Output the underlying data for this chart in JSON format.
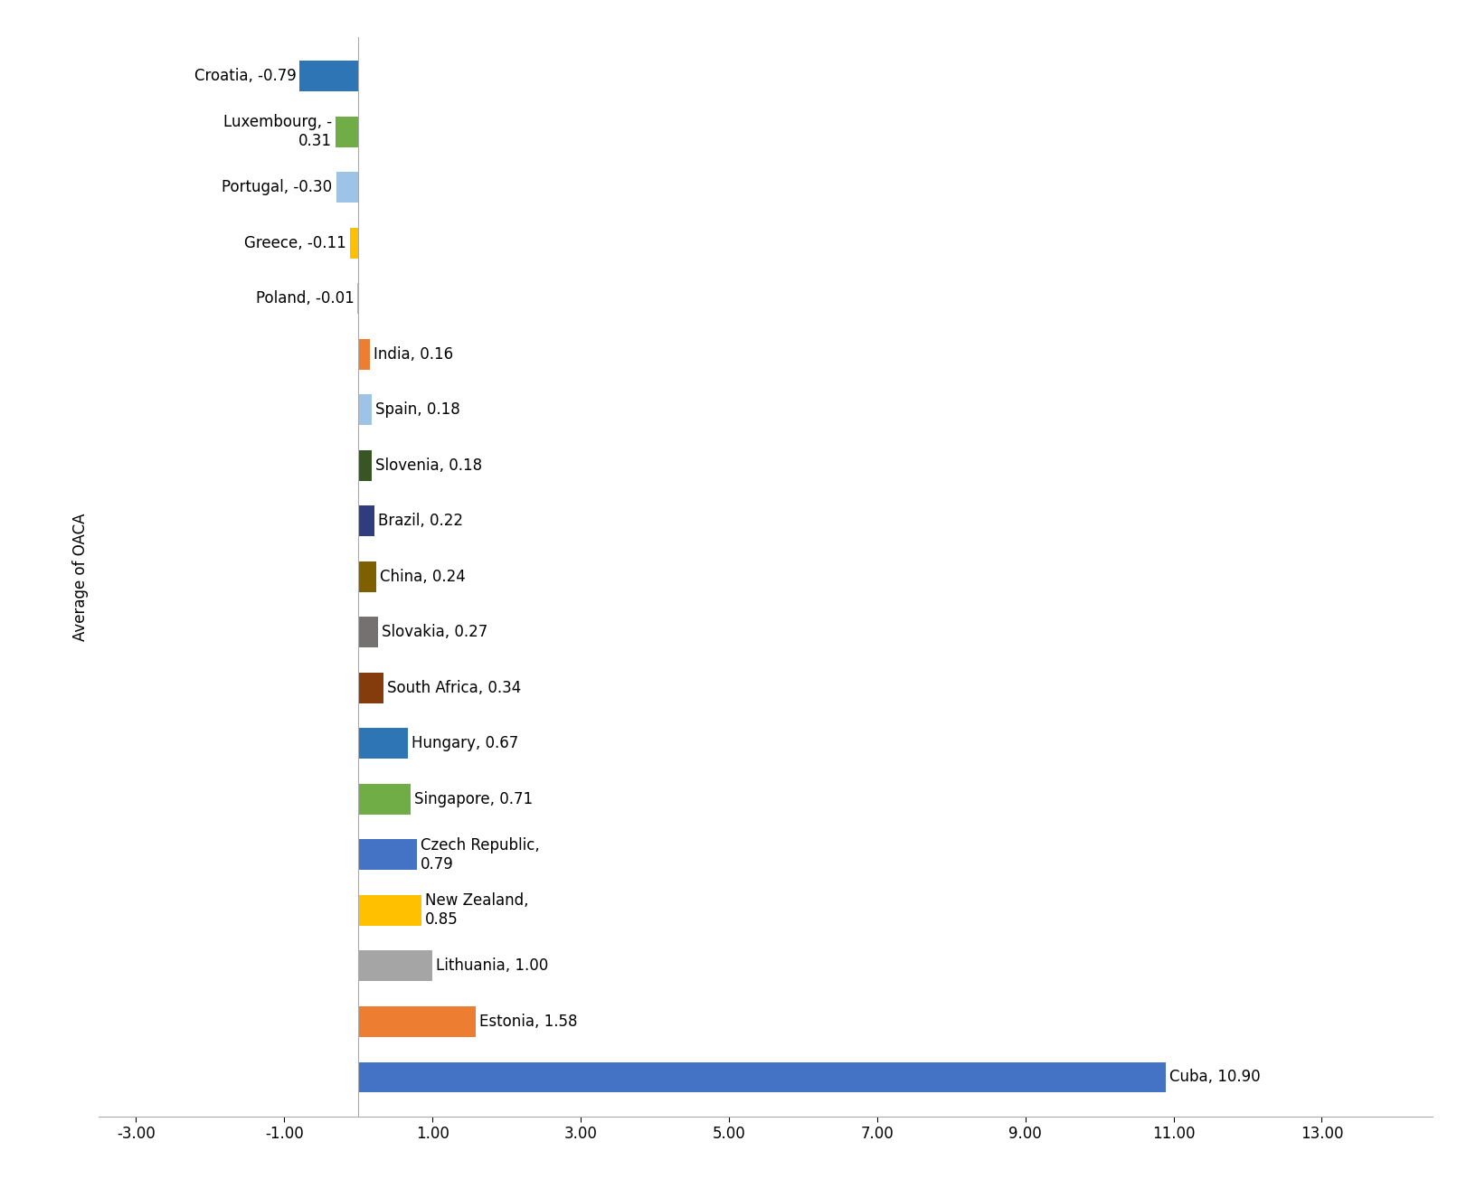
{
  "countries": [
    "Cuba",
    "Estonia",
    "Lithuania",
    "New Zealand",
    "Czech Republic",
    "Singapore",
    "Hungary",
    "South Africa",
    "Slovakia",
    "China",
    "Brazil",
    "Slovenia",
    "Spain",
    "India",
    "Poland",
    "Greece",
    "Portugal",
    "Luxembourg",
    "Croatia"
  ],
  "values": [
    10.9,
    1.58,
    1.0,
    0.85,
    0.79,
    0.71,
    0.67,
    0.34,
    0.27,
    0.24,
    0.22,
    0.18,
    0.18,
    0.16,
    -0.01,
    -0.11,
    -0.3,
    -0.31,
    -0.79
  ],
  "colors": [
    "#4472C4",
    "#ED7D31",
    "#A5A5A5",
    "#FFC000",
    "#4472C4",
    "#70AD47",
    "#2E75B6",
    "#843C0C",
    "#767171",
    "#7F6000",
    "#2F3D7E",
    "#375623",
    "#9DC3E6",
    "#ED7D31",
    "#B8B8B8",
    "#FFC000",
    "#9DC3E6",
    "#70AD47",
    "#2E75B6"
  ],
  "labels": [
    "Cuba, 10.90",
    "Estonia, 1.58",
    "Lithuania, 1.00",
    "New Zealand,\n0.85",
    "Czech Republic,\n0.79",
    "Singapore, 0.71",
    "Hungary, 0.67",
    "South Africa, 0.34",
    "Slovakia, 0.27",
    "China, 0.24",
    "Brazil, 0.22",
    "Slovenia, 0.18",
    "Spain, 0.18",
    "India, 0.16",
    "Poland, -0.01",
    "Greece, -0.11",
    "Portugal, -0.30",
    "Luxembourg, -\n0.31",
    "Croatia, -0.79"
  ],
  "ylabel": "Average of OACA",
  "xlim": [
    -3.5,
    14.5
  ],
  "xticks": [
    -3.0,
    -1.0,
    1.0,
    3.0,
    5.0,
    7.0,
    9.0,
    11.0,
    13.0
  ],
  "xtick_labels": [
    "-3.00",
    "-1.00",
    "1.00",
    "3.00",
    "5.00",
    "7.00",
    "9.00",
    "11.00",
    "13.00"
  ],
  "background_color": "#FFFFFF",
  "label_fontsize": 12,
  "tick_fontsize": 12,
  "ylabel_fontsize": 12,
  "bar_height": 0.55
}
